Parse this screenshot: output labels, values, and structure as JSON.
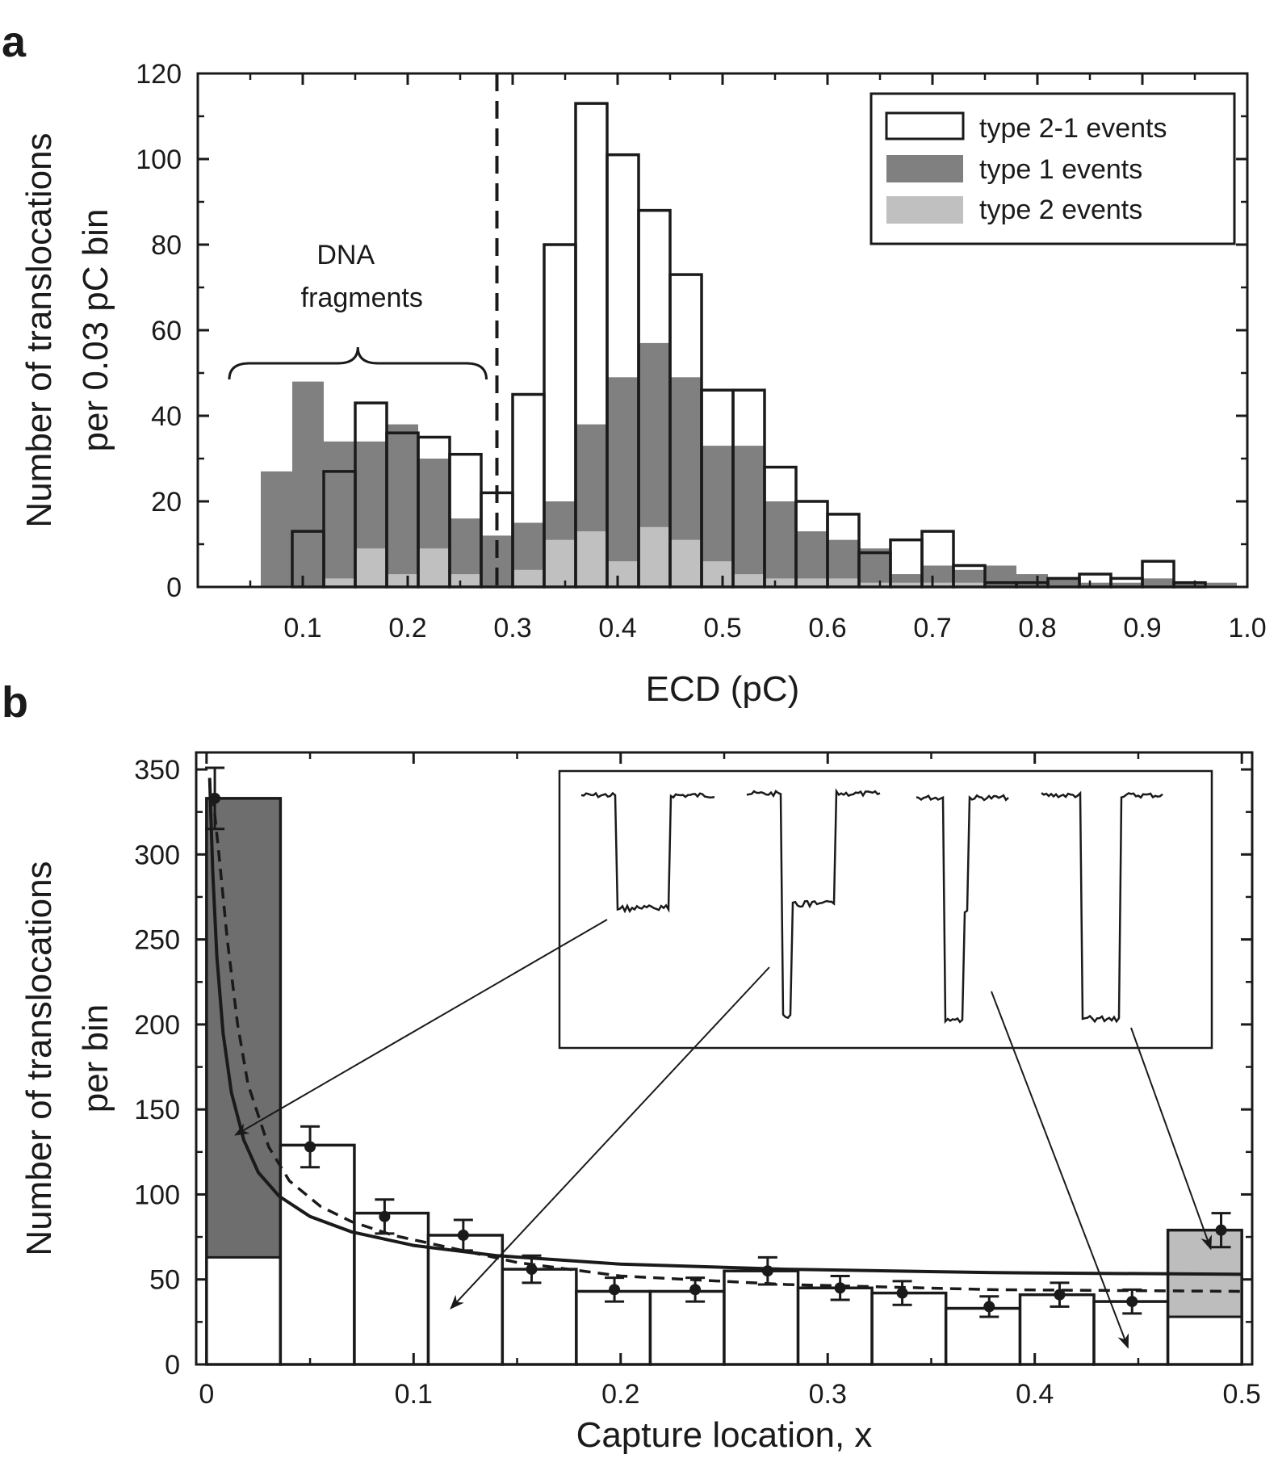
{
  "panels": {
    "a": {
      "letter": "a"
    },
    "b": {
      "letter": "b"
    }
  },
  "colors": {
    "type1": "#808080",
    "type2": "#c0c0c0",
    "type21_fill": "#ffffff",
    "dark_bin": "#6e6e6e",
    "light_bin": "#bdbdbd",
    "ink": "#1a1a1a"
  },
  "chart_data": [
    {
      "id": "a",
      "type": "bar",
      "xlabel": "ECD (pC)",
      "ylabel_lines": [
        "Number of translocations",
        "per 0.03 pC bin"
      ],
      "xlim": [
        0.0,
        1.0
      ],
      "ylim": [
        0,
        120
      ],
      "xticks": [
        0.1,
        0.2,
        0.3,
        0.4,
        0.5,
        0.6,
        0.7,
        0.8,
        0.9,
        1.0
      ],
      "xtick_labels": [
        "0.1",
        "0.2",
        "0.3",
        "0.4",
        "0.5",
        "0.6",
        "0.7",
        "0.8",
        "0.9",
        "1.0"
      ],
      "yticks": [
        0,
        20,
        40,
        60,
        80,
        100,
        120
      ],
      "ytick_labels": [
        "0",
        "20",
        "40",
        "60",
        "80",
        "100",
        "120"
      ],
      "bin_width": 0.03,
      "bin_starts": [
        0.06,
        0.09,
        0.12,
        0.15,
        0.18,
        0.21,
        0.24,
        0.27,
        0.3,
        0.33,
        0.36,
        0.39,
        0.42,
        0.45,
        0.48,
        0.51,
        0.54,
        0.57,
        0.6,
        0.63,
        0.66,
        0.69,
        0.72,
        0.75,
        0.78,
        0.81,
        0.84,
        0.87,
        0.9,
        0.93,
        0.96
      ],
      "series": [
        {
          "name": "type 2-1 events",
          "style": "outline",
          "values": [
            0,
            13,
            27,
            43,
            36,
            35,
            31,
            22,
            45,
            80,
            113,
            101,
            88,
            73,
            46,
            46,
            28,
            20,
            17,
            8,
            11,
            13,
            5,
            1,
            1,
            2,
            3,
            2,
            6,
            1,
            0
          ]
        },
        {
          "name": "type 1 events",
          "style": "dark",
          "values": [
            27,
            48,
            34,
            34,
            38,
            30,
            16,
            12,
            15,
            20,
            38,
            49,
            57,
            49,
            33,
            33,
            20,
            13,
            11,
            9,
            3,
            5,
            4,
            5,
            3,
            2,
            1,
            1,
            2,
            1,
            1
          ]
        },
        {
          "name": "type 2 events",
          "style": "light",
          "values": [
            0,
            0,
            2,
            9,
            3,
            9,
            3,
            0,
            4,
            11,
            13,
            6,
            14,
            11,
            6,
            3,
            2,
            2,
            2,
            1,
            1,
            1,
            1,
            0,
            0,
            0,
            0,
            0,
            0,
            0,
            0
          ]
        }
      ],
      "dashed_line_x": 0.285,
      "annotation": {
        "lines": [
          "DNA",
          "fragments"
        ],
        "brace_from": 0.03,
        "brace_to": 0.275
      },
      "legend": {
        "position": "top-right",
        "entries": [
          {
            "label": "type 2-1 events",
            "style": "outline"
          },
          {
            "label": "type 1 events",
            "style": "dark"
          },
          {
            "label": "type 2 events",
            "style": "light"
          }
        ]
      },
      "grid": false
    },
    {
      "id": "b",
      "type": "bar",
      "xlabel": "Capture location, x",
      "ylabel_lines": [
        "Number of translocations",
        "per bin"
      ],
      "xlim": [
        -0.005,
        0.505
      ],
      "ylim": [
        0,
        360
      ],
      "xticks": [
        0,
        0.1,
        0.2,
        0.3,
        0.4,
        0.5
      ],
      "xtick_labels": [
        "0",
        "0.1",
        "0.2",
        "0.3",
        "0.4",
        "0.5"
      ],
      "yticks": [
        0,
        50,
        100,
        150,
        200,
        250,
        300,
        350
      ],
      "ytick_labels": [
        "0",
        "50",
        "100",
        "150",
        "200",
        "250",
        "300",
        "350"
      ],
      "bins": [
        {
          "x0": 0.0,
          "x1": 0.0357,
          "total": 333,
          "white": 63,
          "shade": "dark"
        },
        {
          "x0": 0.0357,
          "x1": 0.0714,
          "total": 129,
          "white": 129,
          "shade": "none"
        },
        {
          "x0": 0.0714,
          "x1": 0.1071,
          "total": 89,
          "white": 89,
          "shade": "none"
        },
        {
          "x0": 0.1071,
          "x1": 0.1429,
          "total": 76,
          "white": 76,
          "shade": "none"
        },
        {
          "x0": 0.1429,
          "x1": 0.1786,
          "total": 56,
          "white": 56,
          "shade": "none"
        },
        {
          "x0": 0.1786,
          "x1": 0.2143,
          "total": 43,
          "white": 43,
          "shade": "none"
        },
        {
          "x0": 0.2143,
          "x1": 0.25,
          "total": 43,
          "white": 43,
          "shade": "none"
        },
        {
          "x0": 0.25,
          "x1": 0.2857,
          "total": 55,
          "white": 55,
          "shade": "none"
        },
        {
          "x0": 0.2857,
          "x1": 0.3214,
          "total": 45,
          "white": 45,
          "shade": "none"
        },
        {
          "x0": 0.3214,
          "x1": 0.3571,
          "total": 42,
          "white": 42,
          "shade": "none"
        },
        {
          "x0": 0.3571,
          "x1": 0.3929,
          "total": 33,
          "white": 33,
          "shade": "none"
        },
        {
          "x0": 0.3929,
          "x1": 0.4286,
          "total": 41,
          "white": 41,
          "shade": "none"
        },
        {
          "x0": 0.4286,
          "x1": 0.4643,
          "total": 37,
          "white": 37,
          "shade": "none"
        },
        {
          "x0": 0.4643,
          "x1": 0.5,
          "total": 79,
          "white": 28,
          "shade": "light"
        }
      ],
      "points": {
        "x": [
          0.004,
          0.05,
          0.086,
          0.124,
          0.157,
          0.197,
          0.236,
          0.271,
          0.306,
          0.336,
          0.378,
          0.412,
          0.447,
          0.49
        ],
        "y": [
          333,
          128,
          87,
          76,
          56,
          44,
          44,
          55,
          45,
          42,
          34,
          41,
          37,
          79
        ],
        "err": [
          18,
          12,
          10,
          9,
          8,
          7,
          7,
          8,
          7,
          7,
          6,
          7,
          7,
          10
        ]
      },
      "fit_solid": {
        "x": [
          0.0015,
          0.003,
          0.005,
          0.008,
          0.012,
          0.018,
          0.025,
          0.035,
          0.05,
          0.07,
          0.1,
          0.14,
          0.2,
          0.28,
          0.38,
          0.5
        ],
        "y": [
          345,
          290,
          240,
          195,
          160,
          132,
          113,
          99,
          87,
          78,
          70,
          64,
          59,
          56,
          54,
          53
        ]
      },
      "fit_dashed": {
        "x": [
          0.003,
          0.006,
          0.01,
          0.015,
          0.02,
          0.03,
          0.04,
          0.055,
          0.07,
          0.09,
          0.12,
          0.15,
          0.2,
          0.28,
          0.38,
          0.5
        ],
        "y": [
          335,
          300,
          250,
          200,
          165,
          128,
          108,
          93,
          84,
          76,
          68,
          60,
          52,
          47,
          44,
          43
        ]
      },
      "arrows": [
        {
          "from_trace": 0,
          "to": [
            0.014,
            135
          ]
        },
        {
          "from_trace": 1,
          "to": [
            0.118,
            33
          ]
        },
        {
          "from_trace": 2,
          "to": [
            0.445,
            10
          ]
        },
        {
          "from_trace": 3,
          "to": [
            0.485,
            68
          ]
        }
      ],
      "inset": {
        "traces": 4,
        "description_levels": []
      },
      "grid": false
    }
  ]
}
